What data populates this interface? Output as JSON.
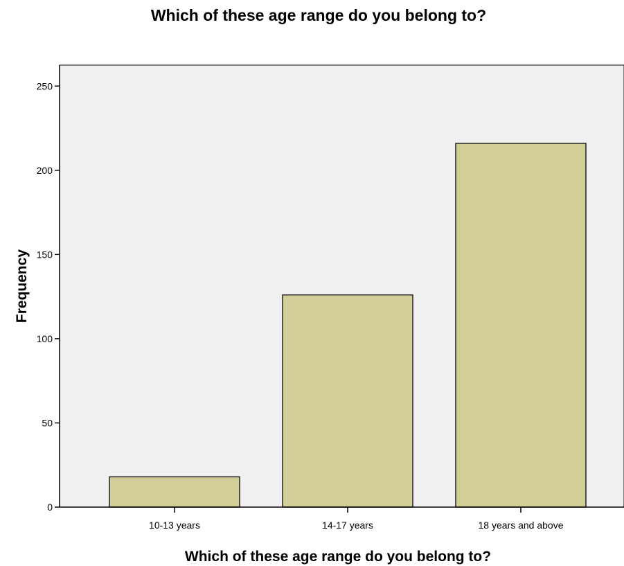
{
  "chart_data": {
    "type": "bar",
    "title": "Which of these age range do you belong to?",
    "xlabel": "Which of these age range do you belong to?",
    "ylabel": "Frequency",
    "categories": [
      "10-13 years",
      "14-17 years",
      "18 years and above"
    ],
    "values": [
      18,
      126,
      216
    ],
    "ylim": [
      0,
      262
    ],
    "yticks": [
      0,
      50,
      100,
      150,
      200,
      250
    ],
    "grid": false,
    "legend": "none",
    "colors": {
      "plot_background": "#f0f0f0",
      "bar_fill": "#d3ce97",
      "bar_stroke": "#222222",
      "axis": "#000000"
    }
  }
}
